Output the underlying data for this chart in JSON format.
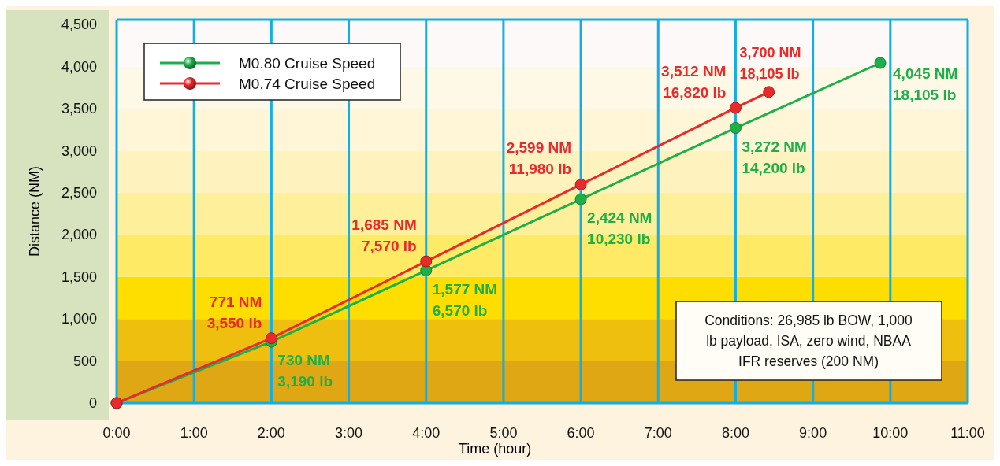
{
  "chart_data": {
    "type": "line",
    "xlabel": "Time (hour)",
    "ylabel": "Distance (NM)",
    "xlim": [
      0,
      11
    ],
    "xticks": [
      {
        "value": 0,
        "label": "0:00"
      },
      {
        "value": 1,
        "label": "1:00"
      },
      {
        "value": 2,
        "label": "2:00"
      },
      {
        "value": 3,
        "label": "3:00"
      },
      {
        "value": 4,
        "label": "4:00"
      },
      {
        "value": 5,
        "label": "5:00"
      },
      {
        "value": 6,
        "label": "6:00"
      },
      {
        "value": 7,
        "label": "7:00"
      },
      {
        "value": 8,
        "label": "8:00"
      },
      {
        "value": 9,
        "label": "9:00"
      },
      {
        "value": 10,
        "label": "10:00"
      },
      {
        "value": 11,
        "label": "11:00"
      }
    ],
    "ylim": [
      0,
      4560
    ],
    "yticks": [
      0,
      {
        "value": 500,
        "label": "500"
      },
      {
        "value": 1000,
        "label": "1,000"
      },
      {
        "value": 1500,
        "label": "1,500"
      },
      {
        "value": 2000,
        "label": "2,000"
      },
      {
        "value": 2500,
        "label": "2,500"
      },
      {
        "value": 3000,
        "label": "3,000"
      },
      {
        "value": 3500,
        "label": "3,500"
      },
      {
        "value": 4000,
        "label": "4,000"
      },
      {
        "value": 4500,
        "label": "4,500"
      }
    ],
    "grid": "x",
    "legend": "top left",
    "marker": "circle",
    "line_style": "solid",
    "series": [
      {
        "name": "M0.80 Cruise Speed",
        "color": "#1db04a",
        "x": [
          0,
          2,
          4,
          6,
          8,
          9.87
        ],
        "values": [
          0,
          730,
          1577,
          2424,
          3272,
          4045
        ],
        "value_labels": [
          null,
          "730 NM\n3,190 lb",
          "1,577 NM\n6,570 lb",
          "2,424 NM\n10,230 lb",
          "3,272 NM\n14,200 lb",
          "4,045 NM\n18,105 lb"
        ]
      },
      {
        "name": "M0.74 Cruise Speed",
        "color": "#e82a2a",
        "x": [
          0,
          2,
          4,
          6,
          8,
          8.43
        ],
        "values": [
          0,
          771,
          1685,
          2599,
          3512,
          3700
        ],
        "value_labels": [
          null,
          "771 NM\n3,550 lb",
          "1,685 NM\n7,570 lb",
          "2,599 NM\n11,980 lb",
          "3,512 NM\n16,820 lb",
          "3,700 NM\n18,105 lb"
        ]
      }
    ],
    "bands": [
      {
        "axis": "y",
        "from": 0,
        "to": 500,
        "color": "#dfa714"
      },
      {
        "axis": "y",
        "from": 500,
        "to": 1000,
        "color": "#eebf0e"
      },
      {
        "axis": "y",
        "from": 1000,
        "to": 1500,
        "color": "#fedd00"
      },
      {
        "axis": "y",
        "from": 1500,
        "to": 2000,
        "color": "#feea64"
      },
      {
        "axis": "y",
        "from": 2000,
        "to": 2500,
        "color": "#fef09a"
      },
      {
        "axis": "y",
        "from": 2500,
        "to": 3000,
        "color": "#fef3bf"
      },
      {
        "axis": "y",
        "from": 3000,
        "to": 3500,
        "color": "#fef6d6"
      },
      {
        "axis": "y",
        "from": 3500,
        "to": 4000,
        "color": "#fef8e6"
      },
      {
        "axis": "y",
        "from": 4000,
        "to": 4560,
        "color": "#fdf9f8"
      }
    ],
    "annotations": [
      "Conditions: 26,985 lb BOW, 1,000\nlb payload, ISA, zero wind, NBAA\nIFR reserves (200 NM)"
    ]
  }
}
